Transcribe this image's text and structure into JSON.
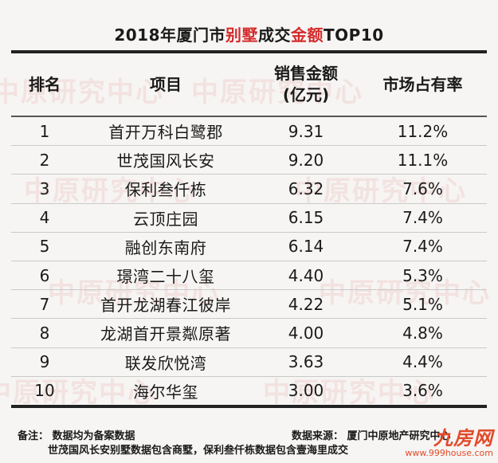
{
  "title": {
    "part1": "2018年厦门市",
    "part2": "别墅",
    "part3": "成交",
    "part4": "金额",
    "part5": "TOP10"
  },
  "colors": {
    "accent_red": "#d42a2a",
    "logo_orange": "#e24a2a"
  },
  "table": {
    "headers": {
      "rank": "排名",
      "project": "项目",
      "sales_line1": "销售金额",
      "sales_line2": "(亿元)",
      "share": "市场占有率"
    },
    "rows": [
      {
        "rank": "1",
        "project": "首开万科白鹭郡",
        "sales": "9.31",
        "share": "11.2%"
      },
      {
        "rank": "2",
        "project": "世茂国风长安",
        "sales": "9.20",
        "share": "11.1%"
      },
      {
        "rank": "3",
        "project": "保利叁仟栋",
        "sales": "6.32",
        "share": "7.6%"
      },
      {
        "rank": "4",
        "project": "云顶庄园",
        "sales": "6.15",
        "share": "7.4%"
      },
      {
        "rank": "5",
        "project": "融创东南府",
        "sales": "6.14",
        "share": "7.4%"
      },
      {
        "rank": "6",
        "project": "璟湾二十八玺",
        "sales": "4.40",
        "share": "5.3%"
      },
      {
        "rank": "7",
        "project": "首开龙湖春江彼岸",
        "sales": "4.22",
        "share": "5.1%"
      },
      {
        "rank": "8",
        "project": "龙湖首开景粼原著",
        "sales": "4.00",
        "share": "4.8%"
      },
      {
        "rank": "9",
        "project": "联发欣悦湾",
        "sales": "3.63",
        "share": "4.4%"
      },
      {
        "rank": "10",
        "project": "海尔华玺",
        "sales": "3.00",
        "share": "3.6%"
      }
    ]
  },
  "notes": {
    "note_left": "备注： 数据均为备案数据",
    "source": "数据来源： 厦门中原地产研究中心",
    "note_line2": "世茂国风长安别墅数据包含商墅，保利叁仟栋数据包含壹海里成交"
  },
  "watermark": {
    "text": "中原研究中心"
  },
  "logo": {
    "mark": "九房网",
    "url": "www.999house.com"
  }
}
